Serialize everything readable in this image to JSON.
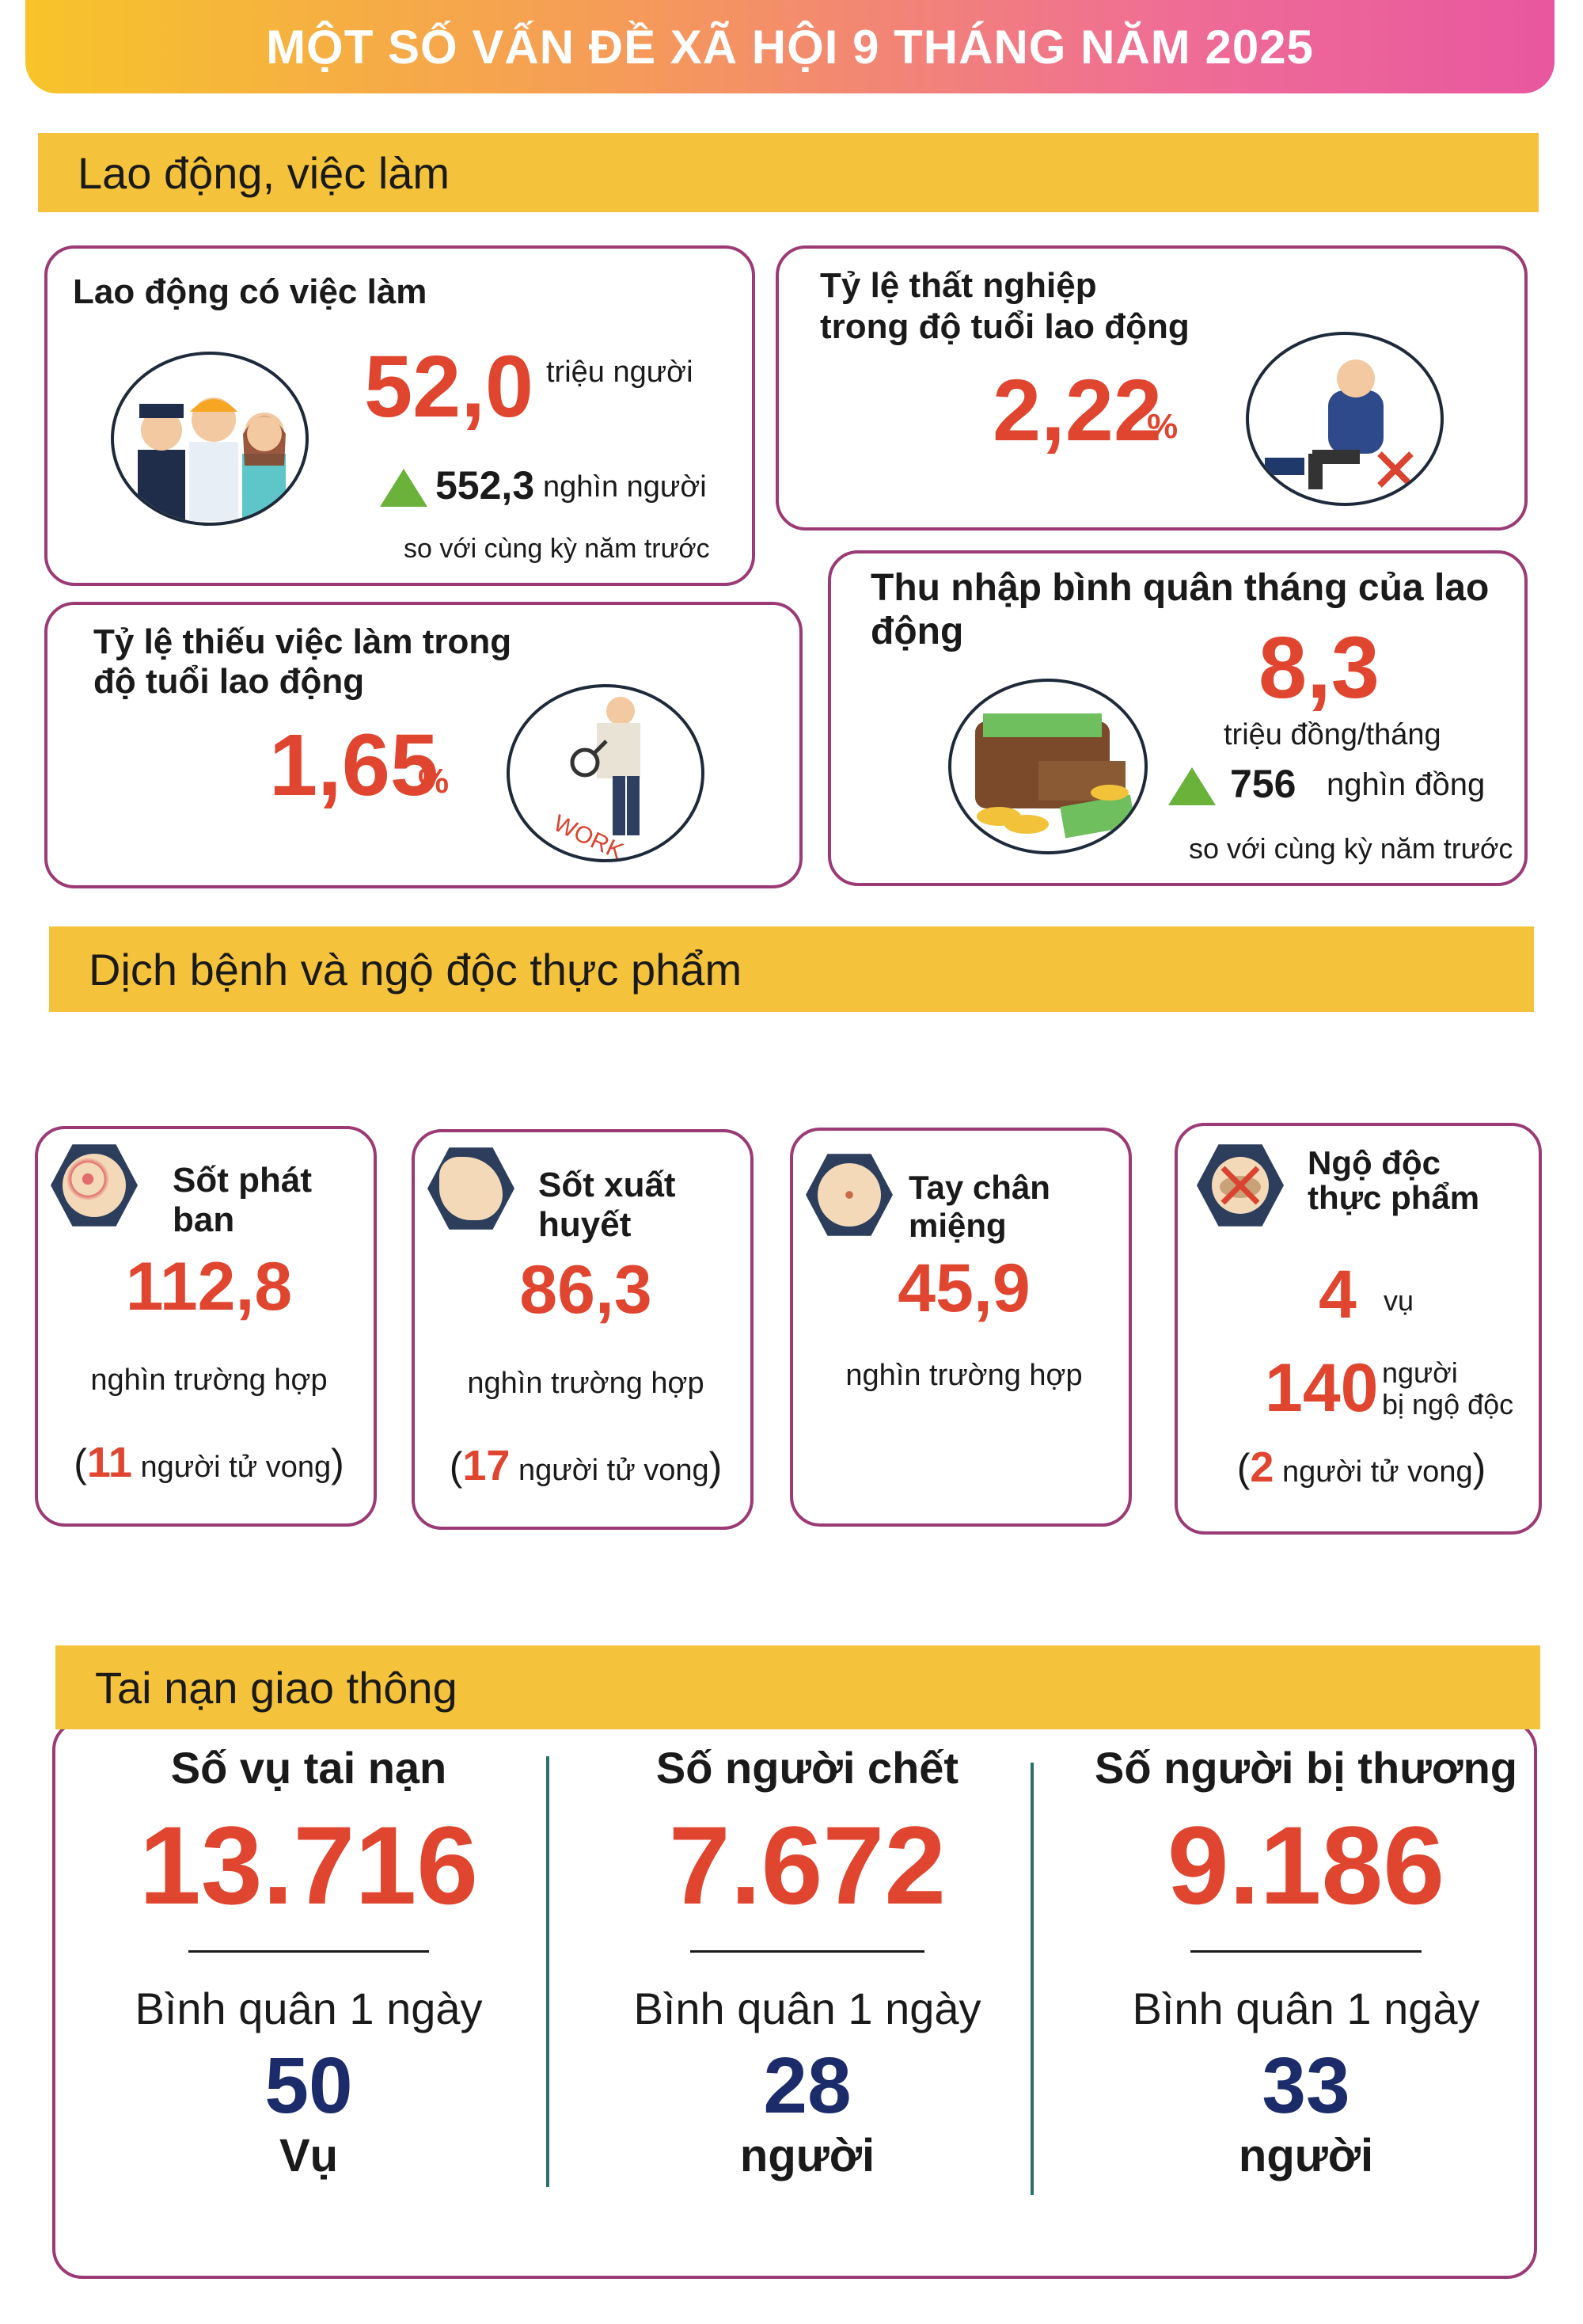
{
  "title": "MỘT SỐ VẤN ĐỀ XÃ HỘI 9 THÁNG NĂM 2025",
  "labor": {
    "heading": "Lao động, việc làm",
    "employed": {
      "label": "Lao động có việc làm",
      "value": "52,0",
      "unit": "triệu người",
      "change": "552,3",
      "change_unit": "nghìn người",
      "compare": "so với cùng kỳ năm trước",
      "icon": "workers-icon"
    },
    "unemployment": {
      "label_line1": "Tỷ lệ thất nghiệp",
      "label_line2": "trong độ tuổi lao động",
      "value": "2,22",
      "unit": "%",
      "icon": "unemployed-man-icon"
    },
    "underemployment": {
      "label_line1": "Tỷ lệ thiếu việc làm trong",
      "label_line2": "độ tuổi lao động",
      "value": "1,65",
      "unit": "%",
      "icon": "job-search-icon",
      "icon_text": "WORK"
    },
    "income": {
      "label": "Thu nhập bình quân tháng của lao động",
      "value": "8,3",
      "unit": "triệu đồng/tháng",
      "change": "756",
      "change_unit": "nghìn đồng",
      "compare": "so với cùng kỳ năm trước",
      "icon": "wallet-money-icon"
    }
  },
  "disease": {
    "heading": "Dịch bệnh và ngộ độc thực phẩm",
    "items": [
      {
        "name": "Sốt phát ban",
        "value": "112,8",
        "unit": "nghìn trường hợp",
        "deaths": "11",
        "deaths_label": "người tử vong",
        "icon": "rash-icon"
      },
      {
        "name": "Sốt xuất huyết",
        "value": "86,3",
        "unit": "nghìn trường hợp",
        "deaths": "17",
        "deaths_label": "người tử vong",
        "icon": "mosquito-icon"
      },
      {
        "name": "Tay chân miệng",
        "value": "45,9",
        "unit": "nghìn trường hợp",
        "icon": "hand-foot-mouth-icon"
      }
    ],
    "food_poisoning": {
      "name_line1": "Ngộ độc",
      "name_line2": "thực phẩm",
      "cases": "4",
      "cases_unit": "vụ",
      "people": "140",
      "people_unit_line1": "người",
      "people_unit_line2": "bị ngộ độc",
      "deaths": "2",
      "deaths_label": "người tử vong",
      "icon": "food-poisoning-icon"
    },
    "paren_open": "(",
    "paren_close": ")"
  },
  "traffic": {
    "heading": "Tai nạn giao thông",
    "columns": [
      {
        "label": "Số vụ tai nạn",
        "value": "13.716",
        "avg_label": "Bình quân 1 ngày",
        "avg_value": "50",
        "avg_unit": "Vụ"
      },
      {
        "label": "Số người chết",
        "value": "7.672",
        "avg_label": "Bình quân 1 ngày",
        "avg_value": "28",
        "avg_unit": "người"
      },
      {
        "label": "Số người bị thương",
        "value": "9.186",
        "avg_label": "Bình quân 1 ngày",
        "avg_value": "33",
        "avg_unit": "người"
      }
    ]
  },
  "colors": {
    "accent_red": "#e0452f",
    "section_yellow": "#f5c33b",
    "card_border": "#9b3a74",
    "up_green": "#6ab23a",
    "navy": "#1c2c6b"
  }
}
